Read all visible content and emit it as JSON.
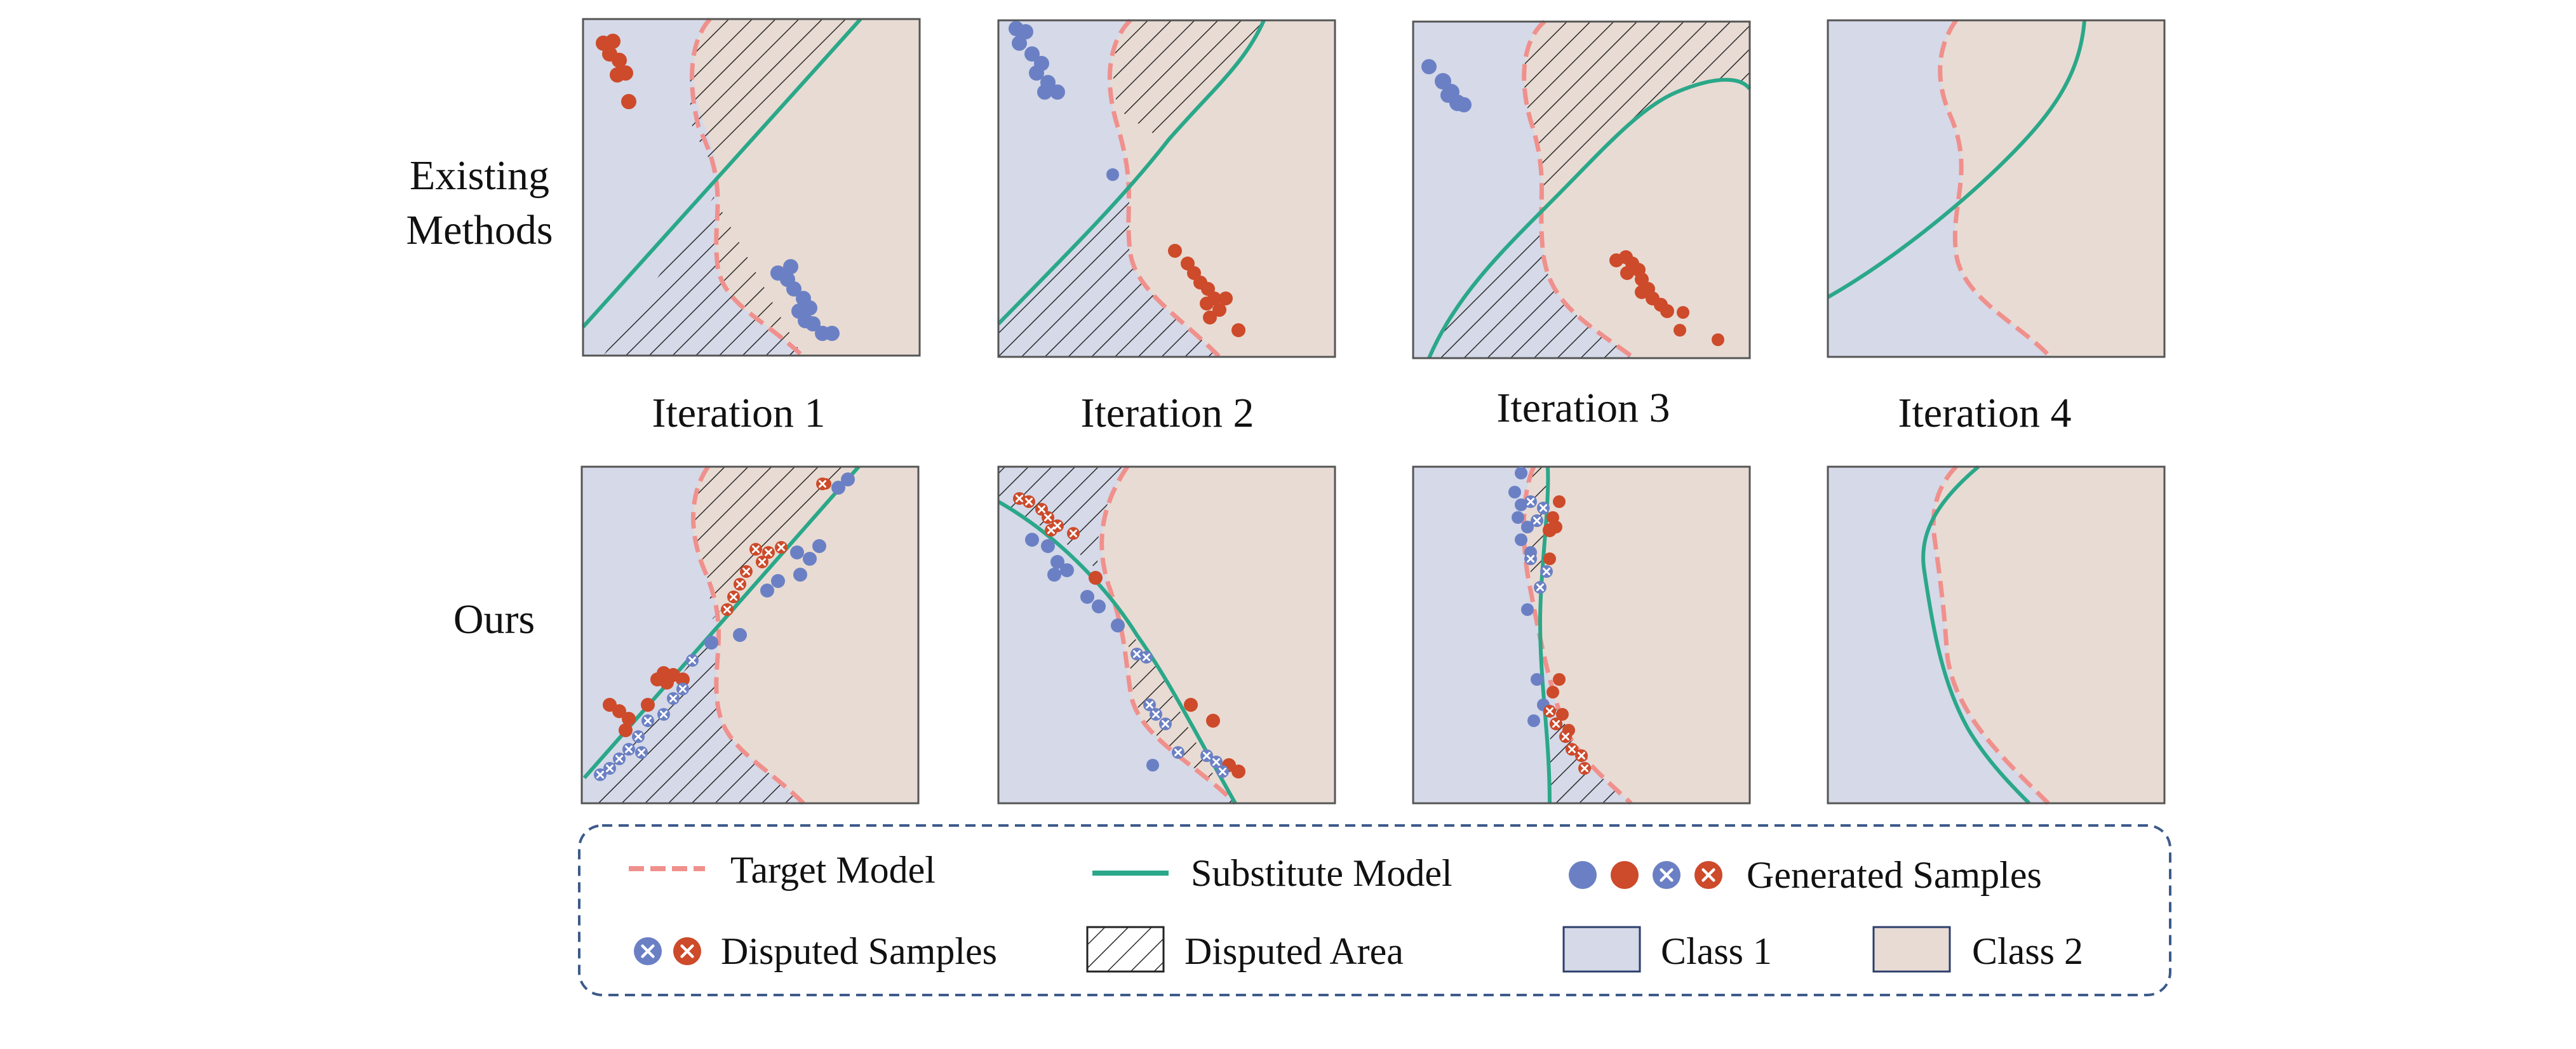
{
  "rows": [
    {
      "label_lines": [
        "Existing",
        "Methods"
      ]
    },
    {
      "label_lines": [
        "Ours"
      ]
    }
  ],
  "iterations": [
    "Iteration 1",
    "Iteration 2",
    "Iteration 3",
    "Iteration 4"
  ],
  "legend": {
    "target_model": "Target Model",
    "substitute_model": "Substitute Model",
    "generated_samples": "Generated Samples",
    "disputed_samples": "Disputed Samples",
    "disputed_area": "Disputed Area",
    "class1": "Class 1",
    "class2": "Class 2"
  },
  "colors": {
    "class1_bg": "#d5d9e8",
    "class2_bg": "#e8dbd3",
    "target_line": "#f0908c",
    "substitute_line": "#2aa889",
    "blue_sample": "#6b80c4",
    "red_sample": "#cd4a2a",
    "legend_border": "#3d5a8a"
  }
}
